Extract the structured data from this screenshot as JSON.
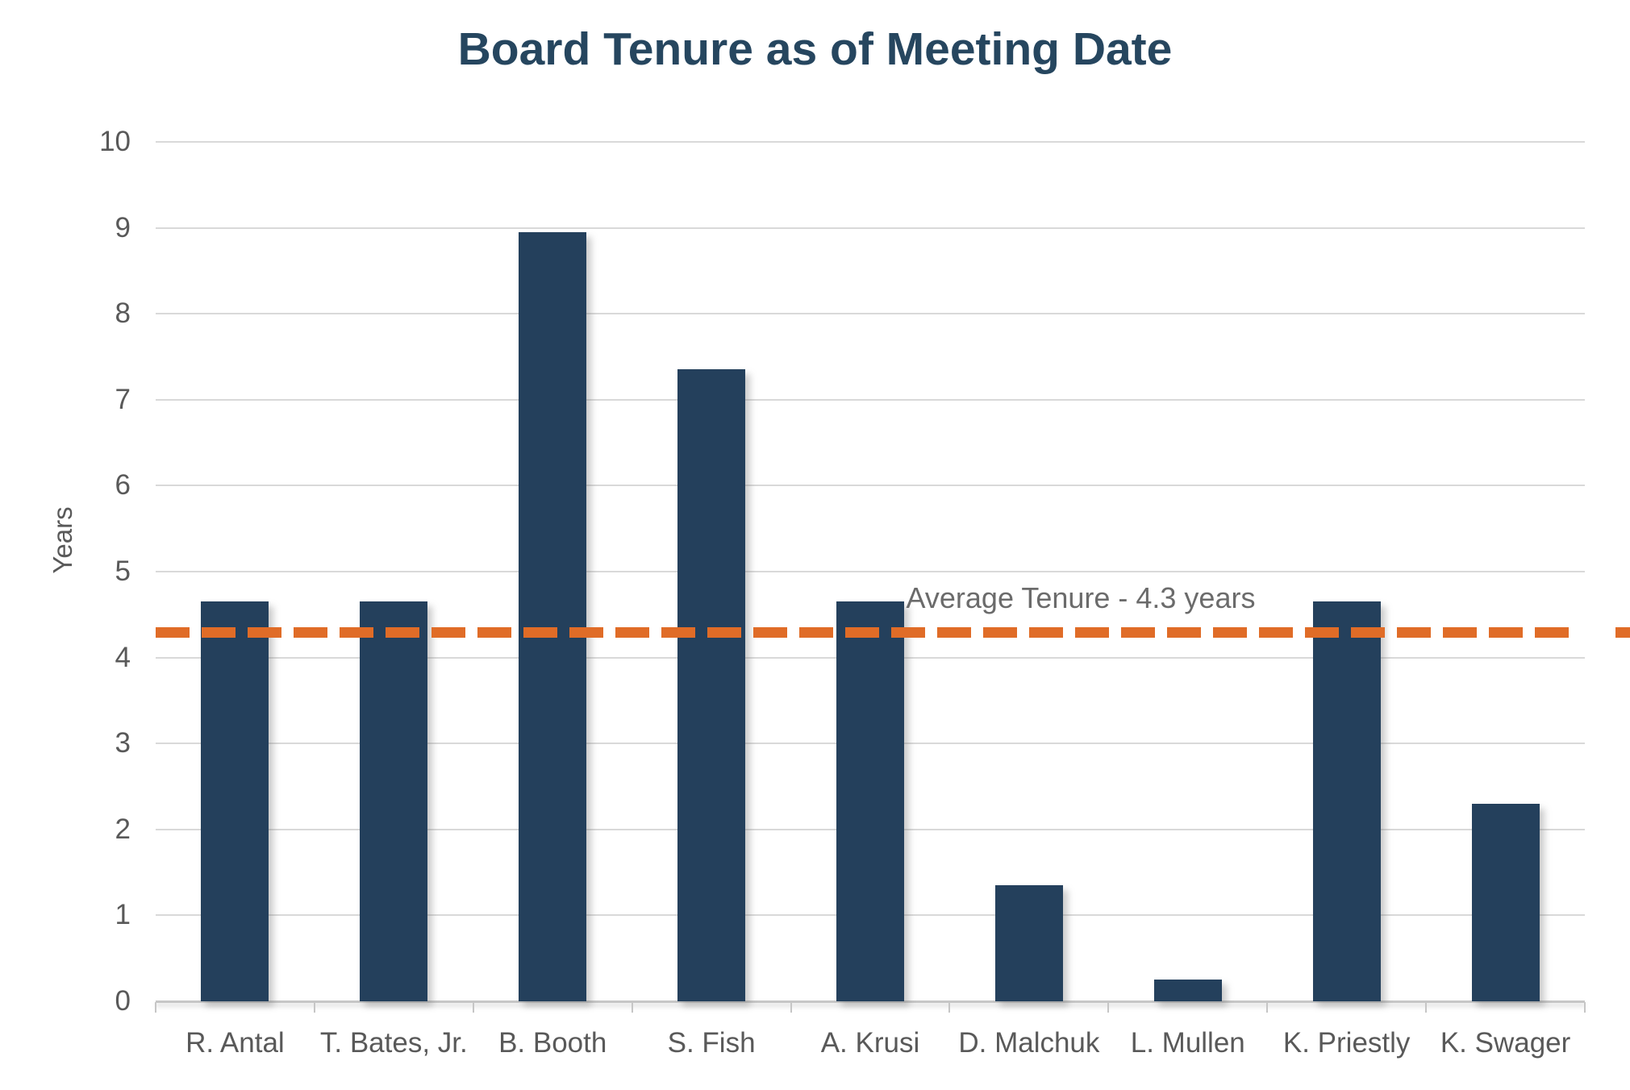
{
  "chart_data": {
    "type": "bar",
    "title": "Board Tenure as of Meeting Date",
    "ylabel": "Years",
    "xlabel": "",
    "categories": [
      "R. Antal",
      "T. Bates, Jr.",
      "B. Booth",
      "S. Fish",
      "A. Krusi",
      "D. Malchuk",
      "L. Mullen",
      "K. Priestly",
      "K. Swager"
    ],
    "values": [
      4.65,
      4.65,
      8.95,
      7.35,
      4.65,
      1.35,
      0.25,
      4.65,
      2.3
    ],
    "ylim": [
      0,
      10
    ],
    "yticks": [
      0,
      1,
      2,
      3,
      4,
      5,
      6,
      7,
      8,
      9,
      10
    ],
    "grid": "horizontal",
    "legend": "none",
    "reference_line": {
      "value": 4.3,
      "label": "Average Tenure - 4.3 years",
      "style": "dashed"
    },
    "colors": {
      "bar": "#24405C",
      "title": "#26465F",
      "reference": "#E06C27",
      "gridline": "#D9D9D9",
      "axis_line": "#C6C6C6",
      "tick_label": "#595959",
      "annotation": "#6B6B6B"
    }
  }
}
